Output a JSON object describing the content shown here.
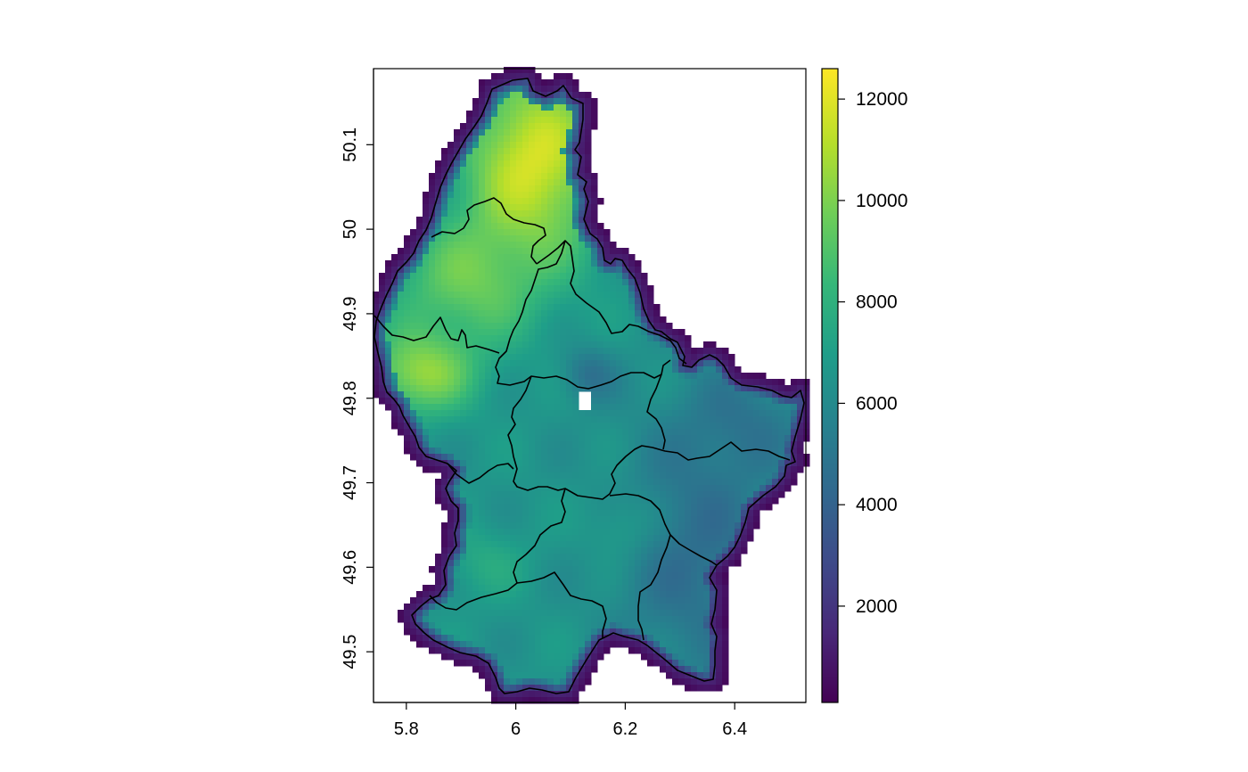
{
  "map": {
    "type": "raster",
    "region": "Luxembourg",
    "x_axis": {
      "range": [
        5.74,
        6.53
      ],
      "ticks": [
        "5.8",
        "6",
        "6.2",
        "6.4"
      ],
      "tick_values": [
        5.8,
        6.0,
        6.2,
        6.4
      ]
    },
    "y_axis": {
      "range": [
        49.44,
        50.19
      ],
      "ticks": [
        "49.5",
        "49.6",
        "49.7",
        "49.8",
        "49.9",
        "50",
        "50.1"
      ],
      "tick_values": [
        49.5,
        49.6,
        49.7,
        49.8,
        49.9,
        50.0,
        50.1
      ]
    },
    "colorbar": {
      "range": [
        100,
        12600
      ],
      "ticks": [
        "2000",
        "4000",
        "6000",
        "8000",
        "10000",
        "12000"
      ],
      "tick_values": [
        2000,
        4000,
        6000,
        8000,
        10000,
        12000
      ],
      "palette": "viridis",
      "colors": [
        "#440154",
        "#482878",
        "#3e4a89",
        "#31688e",
        "#26828e",
        "#1f9e89",
        "#35b779",
        "#6ece58",
        "#b5de2b",
        "#fde725"
      ]
    },
    "nodata_color": "#ffffff",
    "border_color": "#000000"
  }
}
